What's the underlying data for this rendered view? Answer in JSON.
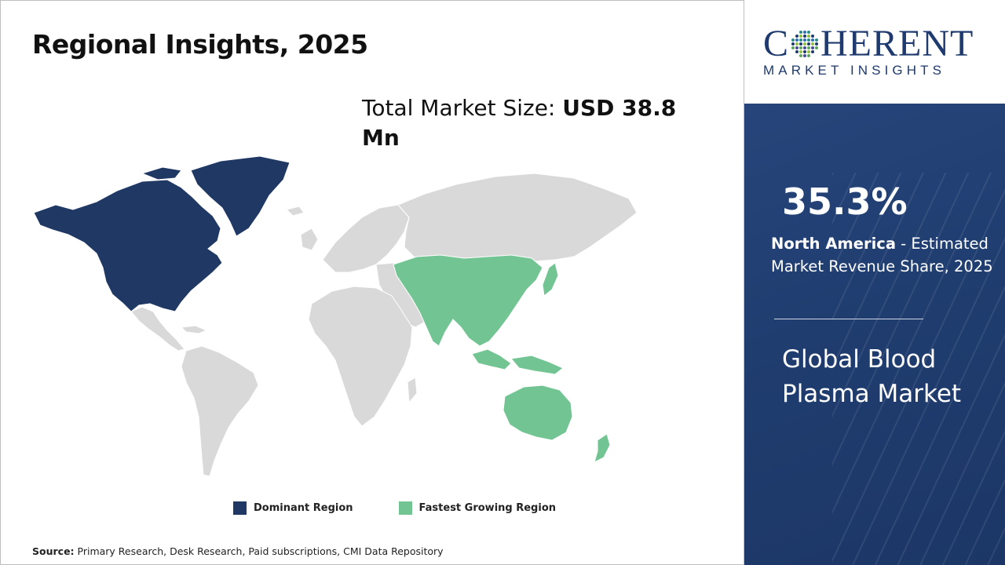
{
  "title": "Regional Insights, 2025",
  "market_size": {
    "label": "Total Market Size: ",
    "value": "USD 38.8 Mn"
  },
  "legend": {
    "dominant": {
      "label": "Dominant Region",
      "color": "#1f3864"
    },
    "fastest": {
      "label": "Fastest Growing Region",
      "color": "#72c593"
    }
  },
  "map_colors": {
    "neutral": "#d9d9d9",
    "dominant": "#1f3864",
    "fastest": "#72c593"
  },
  "source": {
    "label": "Source:",
    "text": " Primary Research, Desk Research, Paid subscriptions, CMI Data Repository"
  },
  "logo": {
    "main_left": "C",
    "main_right": "HERENT",
    "sub": "MARKET INSIGHTS"
  },
  "highlight": {
    "share": "35.3%",
    "region": "North America",
    "description": " - Estimated Market Revenue Share, 2025"
  },
  "market_name": "Global Blood Plasma Market",
  "colors": {
    "brand_blue": "#1f3a6e",
    "panel_blue": "#223f72"
  }
}
